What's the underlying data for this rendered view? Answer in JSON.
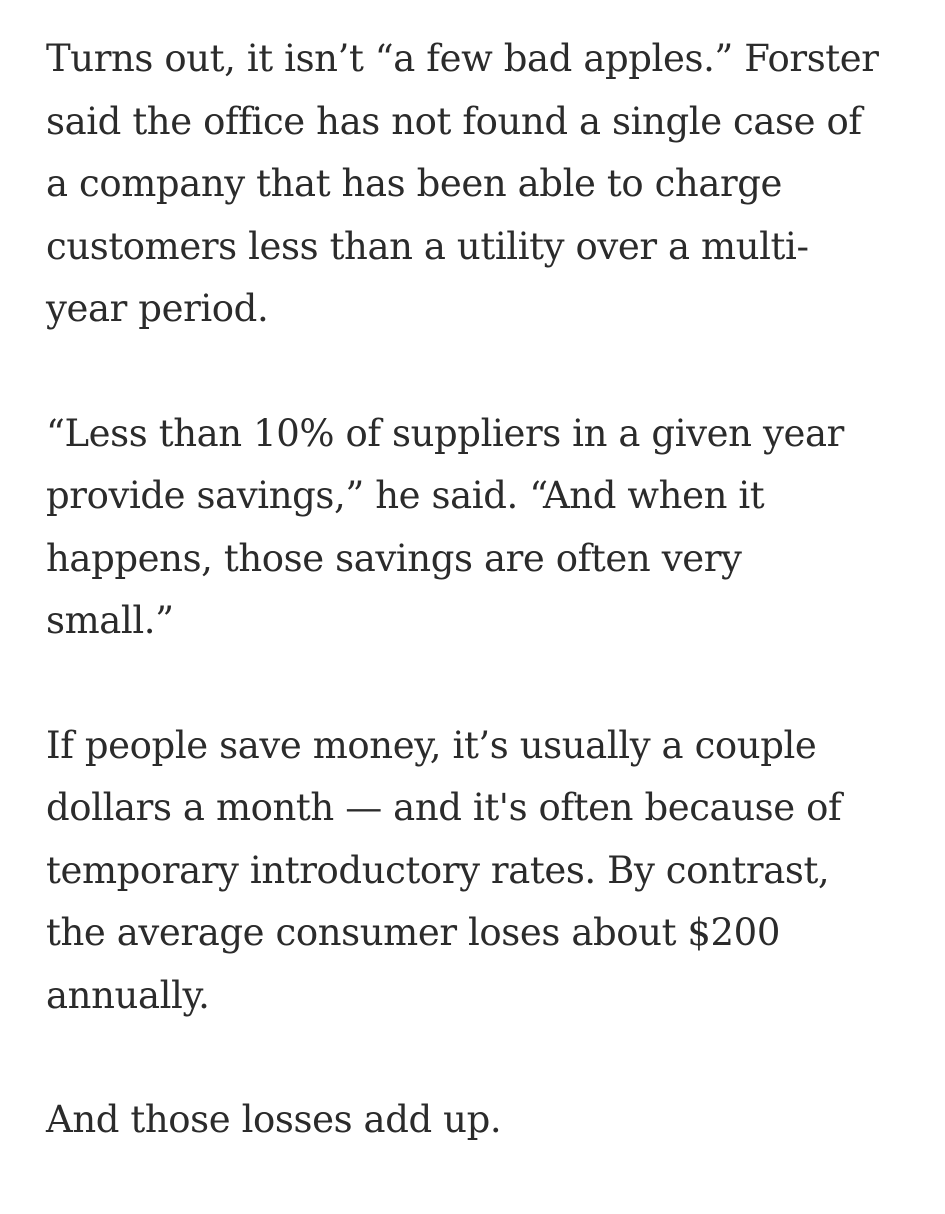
{
  "article": {
    "paragraphs": [
      {
        "lines": [
          "Turns out, it isn’t “a few bad apples.” Forster",
          "said the office has not found a single case of",
          "a company that has been able to charge",
          "customers less than a utility over a multi-",
          "year period."
        ]
      },
      {
        "lines": [
          "“Less than 10% of suppliers in a given year",
          "provide savings,” he said. “And when it",
          "happens, those savings are often very",
          "small.”"
        ]
      },
      {
        "lines": [
          "If people save money, it’s usually a couple",
          "dollars a month — and it's often because of",
          "temporary introductory rates. By contrast,",
          "the average consumer loses about $200",
          "annually."
        ]
      },
      {
        "lines": [
          "And those losses add up."
        ]
      }
    ]
  }
}
